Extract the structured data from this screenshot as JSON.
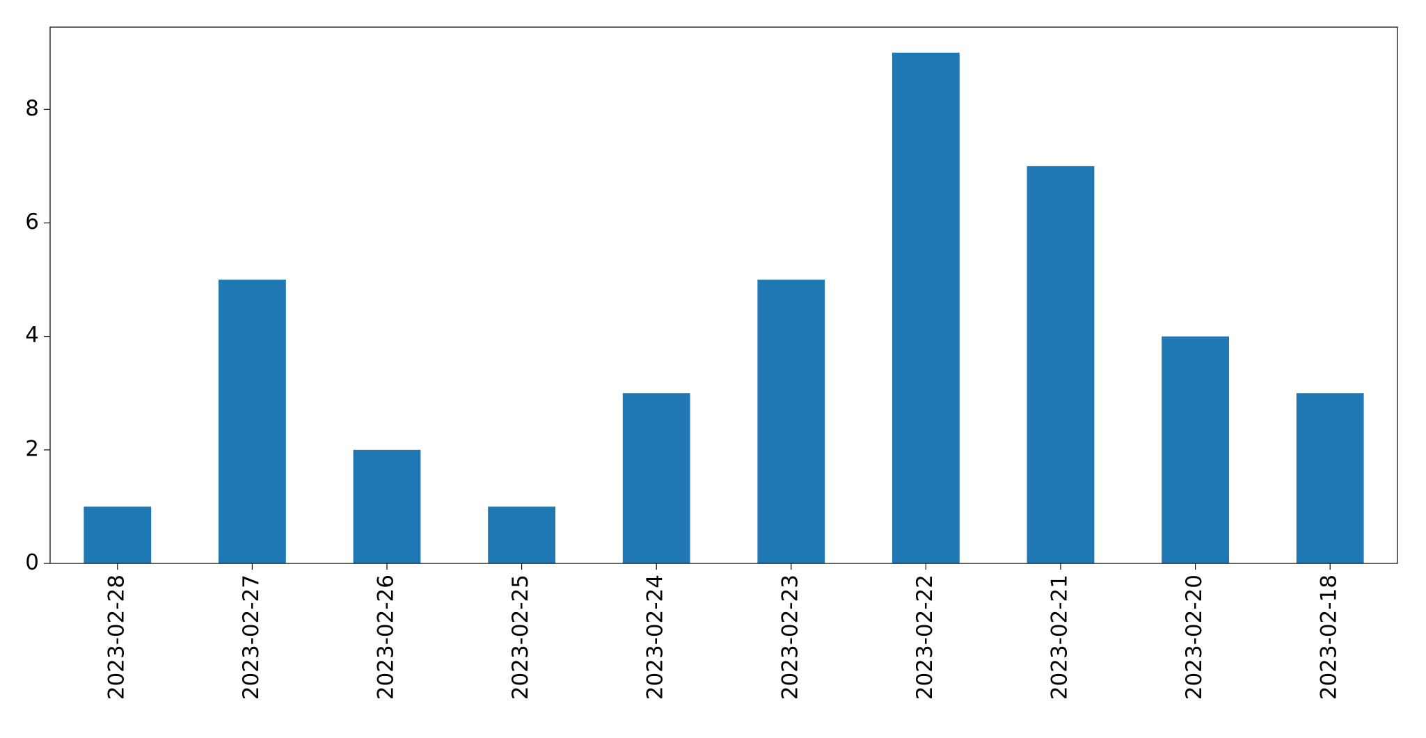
{
  "chart_data": {
    "type": "bar",
    "categories": [
      "2023-02-28",
      "2023-02-27",
      "2023-02-26",
      "2023-02-25",
      "2023-02-24",
      "2023-02-23",
      "2023-02-22",
      "2023-02-21",
      "2023-02-20",
      "2023-02-18"
    ],
    "values": [
      1,
      5,
      2,
      1,
      3,
      5,
      9,
      7,
      4,
      3
    ],
    "color": "#1f77b4",
    "ylim": [
      0,
      9.45
    ],
    "yticks": [
      0,
      2,
      4,
      6,
      8
    ],
    "grid": false
  }
}
